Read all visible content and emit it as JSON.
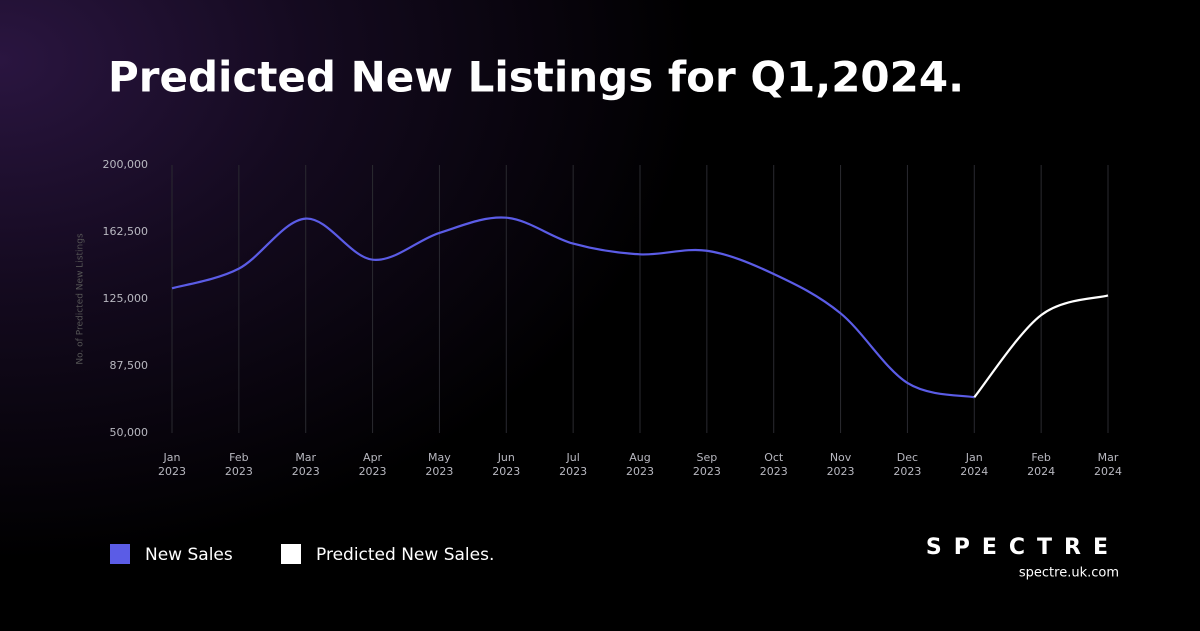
{
  "chart_data": {
    "type": "line",
    "title": "Predicted New Listings for Q1,2024.",
    "ylabel": "No. of Predicted New Listings",
    "categories": [
      "Jan 2023",
      "Feb 2023",
      "Mar 2023",
      "Apr 2023",
      "May 2023",
      "Jun 2023",
      "Jul 2023",
      "Aug 2023",
      "Sep 2023",
      "Oct 2023",
      "Nov 2023",
      "Dec 2023",
      "Jan 2024",
      "Feb 2024",
      "Mar 2024"
    ],
    "series": [
      {
        "name": "New Sales",
        "color": "#5b5ce6",
        "values": [
          131000,
          142000,
          170000,
          147000,
          162000,
          170500,
          156000,
          150000,
          152000,
          139000,
          117000,
          78000,
          70000,
          null,
          null
        ]
      },
      {
        "name": "Predicted New Sales.",
        "color": "#ffffff",
        "values": [
          null,
          null,
          null,
          null,
          null,
          null,
          null,
          null,
          null,
          null,
          null,
          null,
          70000,
          116000,
          127000
        ]
      }
    ],
    "ylim": [
      50000,
      200000
    ],
    "yticks": [
      {
        "value": 50000,
        "label": "50,000"
      },
      {
        "value": 87500,
        "label": "87,500"
      },
      {
        "value": 125000,
        "label": "125,000"
      },
      {
        "value": 162500,
        "label": "162,500"
      },
      {
        "value": 200000,
        "label": "200,000"
      }
    ],
    "grid": "x",
    "brand": {
      "name": "SPECTRE",
      "url": "spectre.uk.com"
    }
  }
}
